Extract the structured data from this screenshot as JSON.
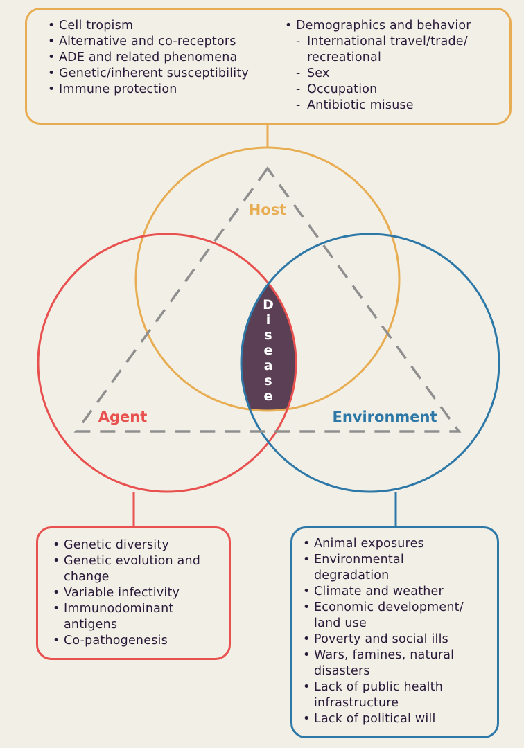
{
  "host_box": {
    "col1": [
      "Cell tropism",
      "Alternative and co-receptors",
      "ADE and related phenomena",
      "Genetic/inherent susceptibility",
      "Immune protection"
    ],
    "col2_heading": "Demographics and behavior",
    "col2_items": [
      "International travel/trade/",
      "recreational",
      "Sex",
      "Occupation",
      "Antibiotic misuse"
    ]
  },
  "agent_box": {
    "items": [
      "Genetic diversity",
      "Genetic evolution and",
      "change",
      "Variable infectivity",
      "Immunodominant",
      "antigens",
      "Co-pathogenesis"
    ]
  },
  "environment_box": {
    "items": [
      "Animal exposures",
      "Environmental",
      "degradation",
      "Climate and weather",
      "Economic development/",
      "land use",
      "Poverty and social ills",
      "Wars, famines, natural",
      "disasters",
      "Lack of public health",
      "infrastructure",
      "Lack of political will"
    ]
  },
  "labels": {
    "host": "Host",
    "agent": "Agent",
    "environment": "Environment",
    "disease": [
      "D",
      "i",
      "s",
      "e",
      "a",
      "s",
      "e"
    ]
  },
  "colors": {
    "host": "#e8ad52",
    "agent": "#e8514f",
    "environment": "#2e78a8",
    "disease_fill": "#5a3f55",
    "triangle": "#8f8f8f",
    "text": "#2a1a3a"
  }
}
